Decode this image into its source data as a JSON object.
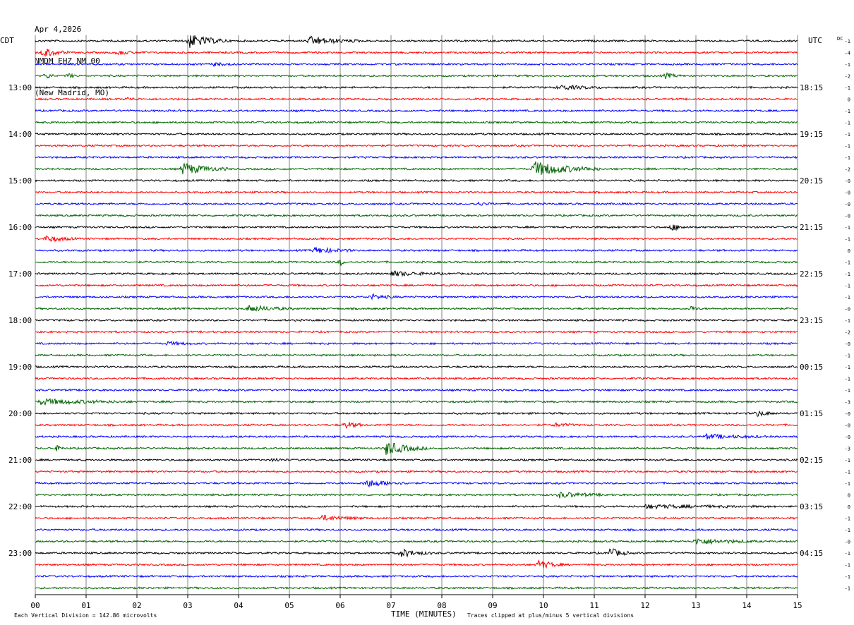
{
  "header": {
    "date": "Apr 4,2026",
    "station": "NMDM EHZ NM 00",
    "location": "(New Madrid, MO)"
  },
  "labels": {
    "left_zone": "CDT",
    "right_zone": "UTC",
    "dc_header": "DC",
    "footer_left": "Each Vertical Division =  142.86 microvolts",
    "footer_center": "TIME (MINUTES)",
    "footer_right": "Traces clipped at plus/minus 5 vertical divisions"
  },
  "chart_data": {
    "type": "line",
    "title": "NMDM EHZ NM 00",
    "xlabel": "TIME (MINUTES)",
    "xlim": [
      0,
      15
    ],
    "x_ticks": [
      "00",
      "01",
      "02",
      "03",
      "04",
      "05",
      "06",
      "07",
      "08",
      "09",
      "10",
      "11",
      "12",
      "13",
      "14",
      "15"
    ],
    "grid": "vertical lines at each minute",
    "trace_colors": [
      "#000000",
      "#ff0000",
      "#0000ff",
      "#006400"
    ],
    "trace_count": 48,
    "left_time_labels": [
      {
        "trace": 4,
        "text": "13:00"
      },
      {
        "trace": 8,
        "text": "14:00"
      },
      {
        "trace": 12,
        "text": "15:00"
      },
      {
        "trace": 16,
        "text": "16:00"
      },
      {
        "trace": 20,
        "text": "17:00"
      },
      {
        "trace": 24,
        "text": "18:00"
      },
      {
        "trace": 28,
        "text": "19:00"
      },
      {
        "trace": 32,
        "text": "20:00"
      },
      {
        "trace": 36,
        "text": "21:00"
      },
      {
        "trace": 40,
        "text": "22:00"
      },
      {
        "trace": 44,
        "text": "23:00"
      }
    ],
    "right_time_labels": [
      {
        "trace": 4,
        "text": "18:15"
      },
      {
        "trace": 8,
        "text": "19:15"
      },
      {
        "trace": 12,
        "text": "20:15"
      },
      {
        "trace": 16,
        "text": "21:15"
      },
      {
        "trace": 20,
        "text": "22:15"
      },
      {
        "trace": 24,
        "text": "23:15"
      },
      {
        "trace": 28,
        "text": "00:15"
      },
      {
        "trace": 32,
        "text": "01:15"
      },
      {
        "trace": 36,
        "text": "02:15"
      },
      {
        "trace": 40,
        "text": "03:15"
      },
      {
        "trace": 44,
        "text": "04:15"
      }
    ],
    "dc_offsets": [
      "-1",
      "-4",
      "-1",
      "-2",
      "-1",
      "0",
      "-1",
      "-1",
      "-1",
      "-1",
      "-1",
      "-2",
      "-0",
      "-0",
      "-0",
      "-0",
      "-1",
      "-1",
      "0",
      "-1",
      "-1",
      "-1",
      "-1",
      "-0",
      "-1",
      "-2",
      "-0",
      "-1",
      "-1",
      "-1",
      "-1",
      "-3",
      "-0",
      "-0",
      "-0",
      "-3",
      "-1",
      "-1",
      "-1",
      "0",
      "0",
      "-1",
      "-1",
      "-0",
      "-1",
      "-1",
      "-1",
      "-1"
    ],
    "events": [
      {
        "trace": 0,
        "minute": 3.0,
        "width": 0.8,
        "amp": 3.2
      },
      {
        "trace": 0,
        "minute": 5.4,
        "width": 1.0,
        "amp": 1.8
      },
      {
        "trace": 1,
        "minute": 0.15,
        "width": 0.5,
        "amp": 2.2
      },
      {
        "trace": 1,
        "minute": 1.6,
        "width": 0.6,
        "amp": 0.8
      },
      {
        "trace": 2,
        "minute": 3.5,
        "width": 0.5,
        "amp": 0.6
      },
      {
        "trace": 3,
        "minute": 0.2,
        "width": 0.2,
        "amp": 1.5
      },
      {
        "trace": 3,
        "minute": 0.65,
        "width": 0.15,
        "amp": 1.2
      },
      {
        "trace": 3,
        "minute": 12.4,
        "width": 0.3,
        "amp": 1.2
      },
      {
        "trace": 4,
        "minute": 10.3,
        "width": 1.0,
        "amp": 1.0
      },
      {
        "trace": 5,
        "minute": 1.8,
        "width": 0.3,
        "amp": 0.7
      },
      {
        "trace": 11,
        "minute": 2.9,
        "width": 0.9,
        "amp": 2.6
      },
      {
        "trace": 11,
        "minute": 9.8,
        "width": 1.3,
        "amp": 3.4
      },
      {
        "trace": 14,
        "minute": 8.7,
        "width": 0.4,
        "amp": 0.6
      },
      {
        "trace": 16,
        "minute": 12.5,
        "width": 0.4,
        "amp": 1.5
      },
      {
        "trace": 17,
        "minute": 0.2,
        "width": 0.6,
        "amp": 1.5
      },
      {
        "trace": 18,
        "minute": 5.5,
        "width": 0.8,
        "amp": 1.3
      },
      {
        "trace": 19,
        "minute": 6.0,
        "width": 0.1,
        "amp": 2.0
      },
      {
        "trace": 20,
        "minute": 7.0,
        "width": 1.0,
        "amp": 1.1
      },
      {
        "trace": 22,
        "minute": 6.6,
        "width": 0.5,
        "amp": 1.2
      },
      {
        "trace": 23,
        "minute": 4.2,
        "width": 0.9,
        "amp": 1.4
      },
      {
        "trace": 23,
        "minute": 12.9,
        "width": 0.2,
        "amp": 1.0
      },
      {
        "trace": 26,
        "minute": 2.6,
        "width": 0.6,
        "amp": 0.7
      },
      {
        "trace": 31,
        "minute": 0.1,
        "width": 1.8,
        "amp": 1.2
      },
      {
        "trace": 32,
        "minute": 14.2,
        "width": 0.4,
        "amp": 1.2
      },
      {
        "trace": 33,
        "minute": 6.1,
        "width": 0.4,
        "amp": 1.5
      },
      {
        "trace": 33,
        "minute": 10.2,
        "width": 0.5,
        "amp": 0.8
      },
      {
        "trace": 34,
        "minute": 13.2,
        "width": 1.2,
        "amp": 1.0
      },
      {
        "trace": 35,
        "minute": 0.4,
        "width": 0.2,
        "amp": 1.2
      },
      {
        "trace": 35,
        "minute": 6.9,
        "width": 0.8,
        "amp": 3.0
      },
      {
        "trace": 36,
        "minute": 4.7,
        "width": 0.2,
        "amp": 1.0
      },
      {
        "trace": 38,
        "minute": 6.5,
        "width": 0.9,
        "amp": 1.6
      },
      {
        "trace": 39,
        "minute": 10.3,
        "width": 1.0,
        "amp": 1.2
      },
      {
        "trace": 40,
        "minute": 12.0,
        "width": 2.5,
        "amp": 0.7
      },
      {
        "trace": 41,
        "minute": 5.6,
        "width": 0.9,
        "amp": 1.2
      },
      {
        "trace": 43,
        "minute": 13.0,
        "width": 1.2,
        "amp": 1.3
      },
      {
        "trace": 44,
        "minute": 7.2,
        "width": 0.6,
        "amp": 1.8
      },
      {
        "trace": 44,
        "minute": 11.3,
        "width": 0.4,
        "amp": 2.4
      },
      {
        "trace": 45,
        "minute": 9.9,
        "width": 0.5,
        "amp": 2.0
      }
    ]
  }
}
